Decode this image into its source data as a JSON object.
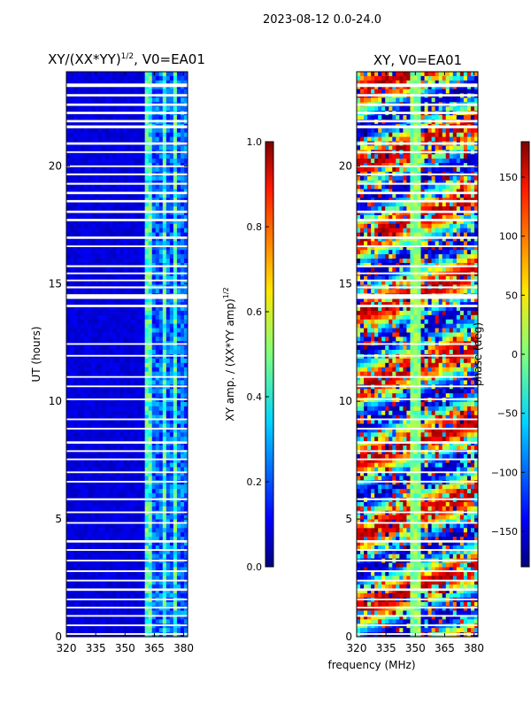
{
  "figure": {
    "suptitle": "2023-08-12 0.0-24.0",
    "shared_xlabel": "frequency (MHz)"
  },
  "chart_data": [
    {
      "type": "heatmap",
      "title": "XY/(XX*YY)",
      "title_superscript": "1/2",
      "title_suffix": ", V0=EA01",
      "xlabel": "",
      "ylabel": "UT (hours)",
      "xlim": [
        320,
        382
      ],
      "ylim": [
        0,
        24
      ],
      "xticks": [
        320,
        335,
        350,
        365,
        380
      ],
      "yticks": [
        0,
        5,
        10,
        15,
        20
      ],
      "colormap": "jet",
      "colorbar": {
        "label": "XY amp. / (XX*YY amp)",
        "label_superscript": "1/2",
        "range": [
          0.0,
          1.0
        ],
        "ticks": [
          "0.0",
          "0.2",
          "0.4",
          "0.6",
          "0.8",
          "1.0"
        ],
        "tick_values": [
          0.0,
          0.2,
          0.4,
          0.6,
          0.8,
          1.0
        ]
      },
      "flagged_bands_hours": [
        [
          23.35,
          23.5
        ],
        [
          22.95,
          23.05
        ],
        [
          22.55,
          22.65
        ],
        [
          22.2,
          22.3
        ],
        [
          21.85,
          21.95
        ],
        [
          21.6,
          21.72
        ],
        [
          20.9,
          21.0
        ],
        [
          20.55,
          20.62
        ],
        [
          19.95,
          20.02
        ],
        [
          19.6,
          19.68
        ],
        [
          19.2,
          19.28
        ],
        [
          18.8,
          18.9
        ],
        [
          18.45,
          18.55
        ],
        [
          18.0,
          18.1
        ],
        [
          17.65,
          17.75
        ],
        [
          16.9,
          17.0
        ],
        [
          16.55,
          16.62
        ],
        [
          15.7,
          15.78
        ],
        [
          15.4,
          15.47
        ],
        [
          15.1,
          15.17
        ],
        [
          14.8,
          14.88
        ],
        [
          14.35,
          14.55
        ],
        [
          14.0,
          14.1
        ],
        [
          12.4,
          12.47
        ],
        [
          11.9,
          11.97
        ],
        [
          11.0,
          11.07
        ],
        [
          10.6,
          10.67
        ],
        [
          10.05,
          10.12
        ],
        [
          9.2,
          9.27
        ],
        [
          8.8,
          8.87
        ],
        [
          8.2,
          8.3
        ],
        [
          7.85,
          7.92
        ],
        [
          7.5,
          7.57
        ],
        [
          6.95,
          7.02
        ],
        [
          6.55,
          6.62
        ],
        [
          5.8,
          5.88
        ],
        [
          5.25,
          5.32
        ],
        [
          4.8,
          4.87
        ],
        [
          4.0,
          4.1
        ],
        [
          3.65,
          3.72
        ],
        [
          3.2,
          3.27
        ],
        [
          2.75,
          2.82
        ],
        [
          2.35,
          2.42
        ],
        [
          1.95,
          2.05
        ],
        [
          1.55,
          1.62
        ],
        [
          1.2,
          1.27
        ],
        [
          0.85,
          0.92
        ],
        [
          0.45,
          0.52
        ],
        [
          0.08,
          0.15
        ]
      ]
    },
    {
      "type": "heatmap",
      "title": "XY, V0=EA01",
      "xlabel": "frequency (MHz)",
      "ylabel": "",
      "xlim": [
        320,
        382
      ],
      "ylim": [
        0,
        24
      ],
      "xticks": [
        320,
        335,
        350,
        365,
        380
      ],
      "yticks": [
        0,
        5,
        10,
        15,
        20
      ],
      "colormap": "jet",
      "colorbar": {
        "label": "phase (deg)",
        "range": [
          -180,
          180
        ],
        "ticks": [
          "150",
          "100",
          "50",
          "0",
          "−50",
          "−100",
          "−150"
        ],
        "tick_values": [
          150,
          100,
          50,
          0,
          -50,
          -100,
          -150
        ]
      },
      "flagged_bands_hours": [
        [
          23.35,
          23.5
        ],
        [
          22.95,
          23.05
        ],
        [
          22.55,
          22.65
        ],
        [
          22.2,
          22.3
        ],
        [
          21.85,
          21.95
        ],
        [
          21.6,
          21.72
        ],
        [
          20.9,
          21.0
        ],
        [
          20.55,
          20.62
        ],
        [
          19.95,
          20.02
        ],
        [
          19.6,
          19.68
        ],
        [
          19.2,
          19.28
        ],
        [
          18.8,
          18.9
        ],
        [
          18.45,
          18.55
        ],
        [
          18.0,
          18.1
        ],
        [
          17.65,
          17.75
        ],
        [
          16.9,
          17.0
        ],
        [
          16.55,
          16.62
        ],
        [
          15.7,
          15.78
        ],
        [
          15.4,
          15.47
        ],
        [
          15.1,
          15.17
        ],
        [
          14.8,
          14.88
        ],
        [
          14.35,
          14.55
        ],
        [
          14.0,
          14.1
        ],
        [
          12.4,
          12.47
        ],
        [
          11.9,
          11.97
        ],
        [
          11.0,
          11.07
        ],
        [
          10.6,
          10.67
        ],
        [
          10.05,
          10.12
        ],
        [
          9.2,
          9.27
        ],
        [
          8.8,
          8.87
        ],
        [
          8.2,
          8.3
        ],
        [
          7.85,
          7.92
        ],
        [
          7.5,
          7.57
        ],
        [
          6.95,
          7.02
        ],
        [
          6.55,
          6.62
        ],
        [
          5.8,
          5.88
        ],
        [
          5.25,
          5.32
        ],
        [
          4.8,
          4.87
        ],
        [
          4.0,
          4.1
        ],
        [
          3.65,
          3.72
        ],
        [
          3.2,
          3.27
        ],
        [
          2.75,
          2.82
        ],
        [
          2.35,
          2.42
        ],
        [
          1.95,
          2.05
        ],
        [
          1.55,
          1.62
        ],
        [
          1.2,
          1.27
        ],
        [
          0.85,
          0.92
        ],
        [
          0.45,
          0.52
        ],
        [
          0.08,
          0.15
        ]
      ]
    }
  ]
}
